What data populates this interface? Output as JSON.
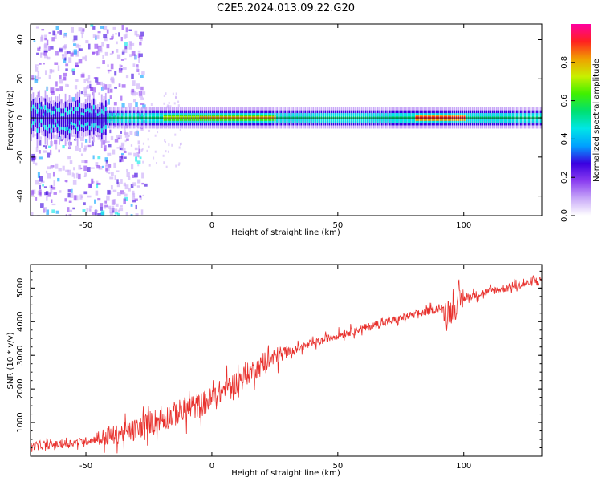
{
  "title": "C2E5.2024.013.09.22.G20",
  "chart_data": [
    {
      "type": "heatmap",
      "xlabel": "Height of straight line (km)",
      "ylabel": "Frequency (Hz)",
      "xlim": [
        -72,
        131
      ],
      "ylim": [
        -50,
        48
      ],
      "xticks": [
        -50,
        0,
        50,
        100
      ],
      "yticks": [
        -40,
        -20,
        0,
        20,
        40
      ],
      "colorbar": {
        "label": "Normalized spectral amplitude",
        "range": [
          0,
          1
        ],
        "ticks": [
          "0.0",
          "0.2",
          "0.4",
          "0.6",
          "0.8"
        ],
        "colormap": [
          "#ffffff",
          "#c8a8f8",
          "#8a3cf0",
          "#3a00e0",
          "#00a0ff",
          "#00e6e6",
          "#00e070",
          "#40f000",
          "#c8f000",
          "#f0a000",
          "#ff2020",
          "#ff00a0"
        ]
      },
      "ridge_center_hz": 0,
      "ridge_segments": [
        {
          "x": [
            -72,
            -42
          ],
          "amplitude": 0.3,
          "noise": "high"
        },
        {
          "x": [
            -42,
            -20
          ],
          "amplitude": 0.5
        },
        {
          "x": [
            -20,
            -5
          ],
          "amplitude": 0.75
        },
        {
          "x": [
            -5,
            25
          ],
          "amplitude": 0.8
        },
        {
          "x": [
            25,
            80
          ],
          "amplitude": 0.55
        },
        {
          "x": [
            80,
            100
          ],
          "amplitude": 0.95
        },
        {
          "x": [
            100,
            131
          ],
          "amplitude": 0.55
        }
      ]
    },
    {
      "type": "line",
      "xlabel": "Height of straight line (km)",
      "ylabel": "SNR (10 * v/v)",
      "xlim": [
        -72,
        131
      ],
      "ylim": [
        0,
        5700
      ],
      "xticks": [
        -50,
        0,
        50,
        100
      ],
      "yticks": [
        1000,
        2000,
        3000,
        4000,
        5000
      ],
      "color": "#e8302c",
      "series": [
        {
          "x": [
            -72,
            -60,
            -50,
            -40,
            -30,
            -25,
            -20,
            -10,
            -5,
            0,
            5,
            10,
            15,
            20,
            25,
            30,
            40,
            50,
            60,
            70,
            80,
            90,
            95,
            100,
            110,
            120,
            131
          ],
          "values": [
            300,
            350,
            450,
            600,
            800,
            1000,
            1100,
            1400,
            1500,
            1700,
            2000,
            2200,
            2500,
            2700,
            2950,
            3100,
            3350,
            3600,
            3800,
            4000,
            4200,
            4400,
            4300,
            4700,
            4900,
            5050,
            5250
          ]
        }
      ]
    }
  ]
}
